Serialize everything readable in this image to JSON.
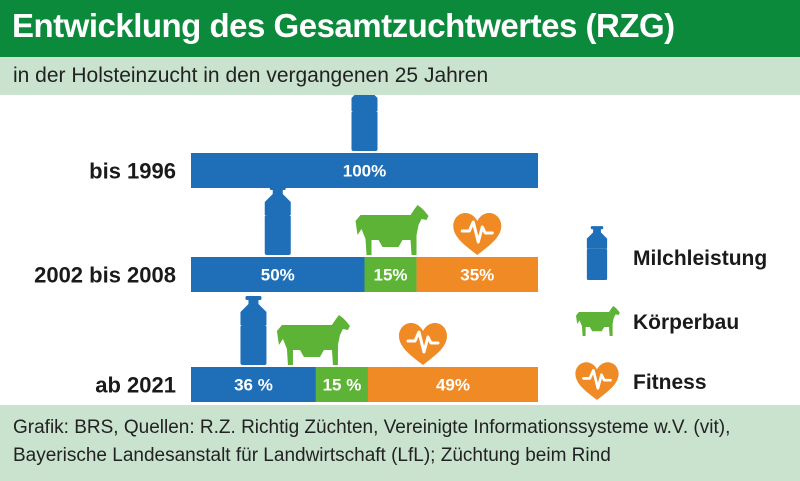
{
  "header": {
    "title": "Entwicklung des Gesamtzuchtwertes (RZG)",
    "subtitle": "in der Holsteinzucht in den vergangenen 25 Jahren"
  },
  "footer": {
    "source": "Grafik: BRS, Quellen: R.Z. Richtig Züchten, Vereinigte Informationssysteme w.V. (vit), Bayerische Landesanstalt für Landwirtschaft (LfL); Züchtung beim Rind"
  },
  "colors": {
    "header_green": "#0c8a3c",
    "band_green": "#c9e3cf",
    "milch": "#1f6fb8",
    "koerper": "#5cb335",
    "fitness": "#f08a24"
  },
  "chart_data": {
    "type": "bar",
    "stacked": true,
    "orientation": "horizontal",
    "categories": [
      "bis 1996",
      "2002 bis 2008",
      "ab 2021"
    ],
    "xlim": [
      0,
      100
    ],
    "series": [
      {
        "name": "Milchleistung",
        "icon": "milk-can-icon",
        "color": "#1f6fb8",
        "values": [
          100,
          50,
          36
        ],
        "labels": [
          "100%",
          "50%",
          "36 %"
        ]
      },
      {
        "name": "Körperbau",
        "icon": "cow-icon",
        "color": "#5cb335",
        "values": [
          0,
          15,
          15
        ],
        "labels": [
          "",
          "15%",
          "15 %"
        ]
      },
      {
        "name": "Fitness",
        "icon": "heart-pulse-icon",
        "color": "#f08a24",
        "values": [
          0,
          35,
          49
        ],
        "labels": [
          "",
          "35%",
          "49%"
        ]
      }
    ],
    "legend_position": "right"
  }
}
